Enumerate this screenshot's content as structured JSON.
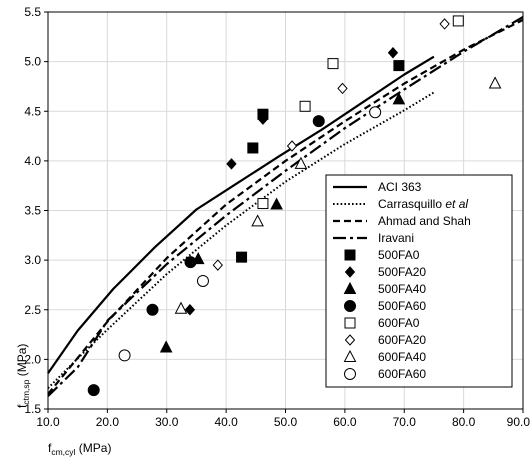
{
  "chart_data": {
    "type": "scatter",
    "x_axis": {
      "label_main": "f",
      "label_sub": "cm,cyl",
      "label_unit": " (MPa)",
      "range": [
        10,
        90
      ],
      "ticks": [
        10,
        20,
        30,
        40,
        50,
        60,
        70,
        80,
        90
      ],
      "tick_labels": [
        "10.0",
        "20.0",
        "30.0",
        "40.0",
        "50.0",
        "60.0",
        "70.0",
        "80.0",
        "90.0"
      ]
    },
    "y_axis": {
      "label_main": "f",
      "label_sub": "ctm,sp",
      "label_unit": " (MPa)",
      "range": [
        1.5,
        5.5
      ],
      "ticks": [
        1.5,
        2.0,
        2.5,
        3.0,
        3.5,
        4.0,
        4.5,
        5.0,
        5.5
      ],
      "tick_labels": [
        "1.5",
        "2.0",
        "2.5",
        "3.0",
        "3.5",
        "4.0",
        "4.5",
        "5.0",
        "5.5"
      ]
    },
    "grid": true,
    "legend_position": "bottom-right",
    "lines": [
      {
        "name": "ACI 363",
        "style": "solid",
        "points": [
          [
            10,
            1.86
          ],
          [
            15,
            2.29
          ],
          [
            21,
            2.71
          ],
          [
            28,
            3.13
          ],
          [
            35,
            3.51
          ],
          [
            42,
            3.78
          ],
          [
            49,
            4.05
          ],
          [
            56,
            4.31
          ],
          [
            63,
            4.59
          ],
          [
            70,
            4.87
          ],
          [
            75,
            5.05
          ]
        ]
      },
      {
        "name": "Carrasquillo",
        "name_italic": "et al",
        "style": "dotted",
        "points": [
          [
            10,
            1.71
          ],
          [
            15,
            2.01
          ],
          [
            20,
            2.3
          ],
          [
            30,
            2.86
          ],
          [
            40,
            3.35
          ],
          [
            50,
            3.79
          ],
          [
            60,
            4.17
          ],
          [
            70,
            4.51
          ],
          [
            75,
            4.69
          ]
        ]
      },
      {
        "name": "Ahmad and Shah",
        "style": "dashed",
        "points": [
          [
            10,
            1.65
          ],
          [
            20,
            2.38
          ],
          [
            30,
            3.02
          ],
          [
            40,
            3.56
          ],
          [
            50,
            4.0
          ],
          [
            60,
            4.4
          ],
          [
            70,
            4.78
          ],
          [
            80,
            5.12
          ],
          [
            90,
            5.42
          ]
        ]
      },
      {
        "name": "Iravani",
        "style": "longdash",
        "points": [
          [
            10,
            1.63
          ],
          [
            15,
            1.92
          ],
          [
            20,
            2.39
          ],
          [
            30,
            2.96
          ],
          [
            40,
            3.45
          ],
          [
            50,
            3.9
          ],
          [
            60,
            4.33
          ],
          [
            70,
            4.72
          ],
          [
            80,
            5.1
          ],
          [
            90,
            5.45
          ]
        ]
      }
    ],
    "series": [
      {
        "name": "500FA0",
        "marker": "square",
        "filled": true,
        "points": [
          [
            42.6,
            3.03
          ],
          [
            44.5,
            4.13
          ],
          [
            46.2,
            4.47
          ],
          [
            69.1,
            4.96
          ]
        ]
      },
      {
        "name": "500FA20",
        "marker": "diamond",
        "filled": true,
        "points": [
          [
            33.9,
            2.5
          ],
          [
            40.9,
            3.97
          ],
          [
            46.2,
            4.42
          ],
          [
            68.1,
            5.09
          ]
        ]
      },
      {
        "name": "500FA40",
        "marker": "triangle",
        "filled": true,
        "points": [
          [
            29.9,
            2.12
          ],
          [
            35.3,
            3.01
          ],
          [
            48.5,
            3.56
          ],
          [
            69.1,
            4.62
          ]
        ]
      },
      {
        "name": "500FA60",
        "marker": "circle",
        "filled": true,
        "points": [
          [
            17.7,
            1.69
          ],
          [
            27.6,
            2.5
          ],
          [
            34.0,
            2.98
          ],
          [
            55.6,
            4.4
          ]
        ]
      },
      {
        "name": "600FA0",
        "marker": "square",
        "filled": false,
        "points": [
          [
            46.2,
            3.57
          ],
          [
            53.3,
            4.55
          ],
          [
            58.0,
            4.98
          ],
          [
            79.1,
            5.41
          ]
        ]
      },
      {
        "name": "600FA20",
        "marker": "diamond",
        "filled": false,
        "points": [
          [
            38.6,
            2.95
          ],
          [
            51.1,
            4.15
          ],
          [
            59.6,
            4.73
          ],
          [
            76.8,
            5.38
          ]
        ]
      },
      {
        "name": "600FA40",
        "marker": "triangle",
        "filled": false,
        "points": [
          [
            32.4,
            2.51
          ],
          [
            45.3,
            3.39
          ],
          [
            52.6,
            3.97
          ],
          [
            85.3,
            4.78
          ]
        ]
      },
      {
        "name": "600FA60",
        "marker": "circle",
        "filled": false,
        "points": [
          [
            22.9,
            2.04
          ],
          [
            36.1,
            2.79
          ],
          [
            65.1,
            4.49
          ]
        ]
      }
    ]
  }
}
